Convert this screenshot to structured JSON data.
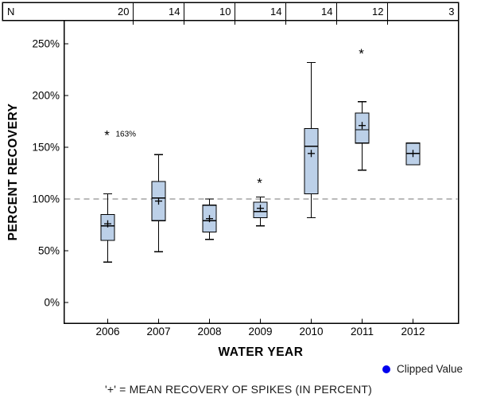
{
  "window": {
    "background": "#ffffff"
  },
  "chart": {
    "n_row_label": "N",
    "footnote": "'+' = MEAN RECOVERY OF SPIKES (IN PERCENT)",
    "legend": {
      "label": "Clipped Value",
      "marker": "filled-circle",
      "marker_color": "#0000ee"
    },
    "colors": {
      "box_fill": "#bcd0e8",
      "box_stroke": "#000000",
      "frame": "#000000",
      "reference_line": "#909090",
      "text": "#000000"
    }
  },
  "chart_data": {
    "type": "boxplot",
    "xlabel": "WATER YEAR",
    "ylabel": "PERCENT RECOVERY",
    "categories": [
      "2006",
      "2007",
      "2008",
      "2009",
      "2010",
      "2011",
      "2012"
    ],
    "sample_sizes": [
      20,
      14,
      10,
      14,
      14,
      12,
      3
    ],
    "y_ticks_percent": [
      0,
      50,
      100,
      150,
      200,
      250
    ],
    "y_tick_labels": [
      "0%",
      "50%",
      "100%",
      "150%",
      "200%",
      "250%"
    ],
    "ylim": [
      -20,
      272
    ],
    "reference_line_percent": 100,
    "grid": "off",
    "legend_position": "bottom-right",
    "boxes": [
      {
        "year": "2006",
        "n": 20,
        "min": 39,
        "q1": 60,
        "median": 74,
        "mean": 76,
        "q3": 85,
        "max": 105,
        "outliers": [
          {
            "value": 163,
            "label": "163%"
          }
        ]
      },
      {
        "year": "2007",
        "n": 14,
        "min": 49,
        "q1": 79,
        "median": 101,
        "mean": 98,
        "q3": 117,
        "max": 143,
        "outliers": []
      },
      {
        "year": "2008",
        "n": 10,
        "min": 61,
        "q1": 68,
        "median": 79,
        "mean": 81,
        "q3": 94,
        "max": 100,
        "outliers": []
      },
      {
        "year": "2009",
        "n": 14,
        "min": 74,
        "q1": 82,
        "median": 88,
        "mean": 91,
        "q3": 97,
        "max": 102,
        "outliers": [
          {
            "value": 117
          }
        ]
      },
      {
        "year": "2010",
        "n": 14,
        "min": 82,
        "q1": 105,
        "median": 151,
        "mean": 144,
        "q3": 168,
        "max": 232,
        "outliers": []
      },
      {
        "year": "2011",
        "n": 12,
        "min": 128,
        "q1": 154,
        "median": 167,
        "mean": 171,
        "q3": 183,
        "max": 194,
        "outliers": [
          {
            "value": 242
          }
        ]
      },
      {
        "year": "2012",
        "n": 3,
        "min": 133,
        "q1": 133,
        "median": 144,
        "mean": 144,
        "q3": 154,
        "max": 154,
        "outliers": []
      }
    ]
  }
}
